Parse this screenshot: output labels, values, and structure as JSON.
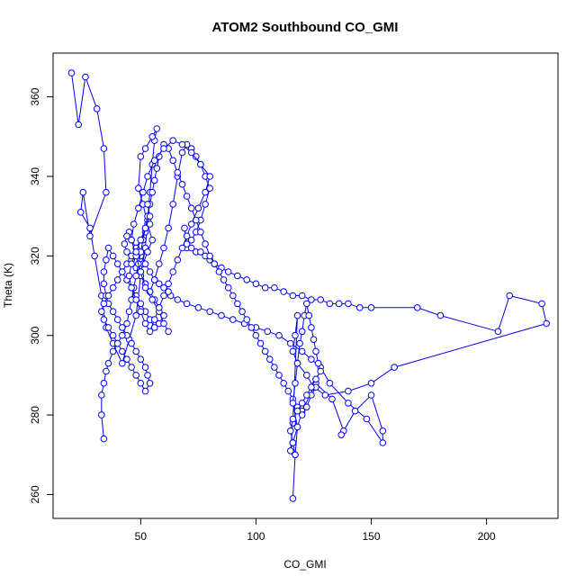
{
  "chart_data": {
    "type": "line",
    "title": "ATOM2 Southbound CO_GMI",
    "xlabel": "CO_GMI",
    "ylabel": "Theta (K)",
    "xlim": [
      12,
      231
    ],
    "ylim": [
      254,
      371
    ],
    "xticks": [
      50,
      100,
      150,
      200
    ],
    "yticks": [
      260,
      280,
      300,
      320,
      340,
      360
    ],
    "grid": false,
    "legend": "none",
    "series_color": "#0000ff",
    "marker": "open-circle",
    "series": [
      {
        "x": [
          20,
          23,
          26,
          31,
          34,
          35,
          28,
          25,
          24,
          28,
          30,
          33,
          35,
          38,
          42,
          45,
          48,
          50,
          52,
          53,
          54,
          55,
          56,
          57,
          55,
          52,
          50,
          49,
          51,
          53,
          55,
          53,
          51,
          50,
          52,
          54,
          56,
          58,
          60,
          62,
          64,
          66,
          68,
          70,
          72,
          74,
          76,
          78,
          80,
          78,
          76,
          74,
          72,
          70,
          69,
          70,
          72,
          74,
          76,
          78,
          80,
          82,
          85,
          88,
          92,
          96,
          100,
          104,
          108,
          112,
          116,
          120,
          124,
          128,
          132,
          136,
          140,
          145,
          150,
          170,
          180,
          205,
          210,
          224,
          226,
          160,
          150,
          140,
          130,
          125,
          122,
          118,
          116,
          117,
          118,
          116,
          115,
          116,
          120,
          126,
          133,
          138,
          137,
          143,
          150,
          155,
          155,
          148,
          140,
          132,
          128,
          124,
          120,
          115,
          110,
          105,
          100,
          95,
          90,
          85,
          80,
          75,
          70,
          66,
          63,
          62,
          60,
          58,
          56,
          54,
          52,
          50,
          48,
          46,
          45,
          44,
          43,
          44,
          46,
          48,
          50,
          52,
          54,
          56,
          58,
          60,
          58,
          56,
          54,
          52,
          50,
          48,
          46,
          44,
          42,
          40,
          38,
          36,
          35,
          34,
          34,
          35,
          36,
          38,
          40,
          42,
          44,
          46,
          48,
          50,
          52,
          53,
          54,
          52,
          50,
          48,
          46,
          44,
          42,
          40,
          38,
          36,
          34,
          33,
          34,
          36,
          38,
          40,
          42,
          44,
          46,
          48,
          50,
          52,
          54
        ],
        "y": [
          366,
          353,
          365,
          357,
          347,
          336,
          325,
          336,
          331,
          327,
          320,
          310,
          302,
          298,
          293,
          299,
          305,
          315,
          322,
          329,
          336,
          343,
          349,
          352,
          350,
          347,
          345,
          337,
          333,
          328,
          324,
          321,
          318,
          316,
          313,
          311,
          314,
          318,
          322,
          327,
          333,
          340,
          346,
          348,
          347,
          345,
          343,
          340,
          337,
          333,
          329,
          326,
          324,
          322,
          327,
          323,
          322,
          321,
          321,
          320,
          319,
          318,
          317,
          316,
          315,
          314,
          313,
          312,
          312,
          311,
          310,
          310,
          309,
          309,
          308,
          308,
          308,
          307,
          307,
          307,
          305,
          301,
          310,
          308,
          303,
          292,
          288,
          286,
          285,
          287,
          290,
          293,
          296,
          300,
          305,
          278,
          271,
          273,
          281,
          288,
          284,
          276,
          275,
          281,
          285,
          276,
          273,
          279,
          283,
          288,
          292,
          294,
          296,
          298,
          300,
          301,
          302,
          303,
          304,
          305,
          306,
          307,
          308,
          309,
          310,
          311,
          312,
          313,
          314,
          316,
          318,
          320,
          322,
          324,
          326,
          325,
          323,
          321,
          319,
          317,
          315,
          313,
          311,
          309,
          307,
          305,
          303,
          302,
          304,
          306,
          308,
          310,
          312,
          314,
          316,
          318,
          320,
          322,
          319,
          316,
          313,
          310,
          308,
          306,
          304,
          302,
          300,
          298,
          296,
          294,
          292,
          290,
          288,
          286,
          288,
          290,
          292,
          294,
          296,
          298,
          300,
          302,
          304,
          306,
          308,
          310,
          312,
          314,
          316,
          318,
          320,
          322,
          324,
          326,
          328
        ]
      },
      {
        "x": [
          34,
          33,
          33,
          34,
          35,
          36,
          38,
          40,
          42,
          44,
          45,
          46,
          47,
          48,
          49,
          50,
          51,
          52,
          53,
          54,
          55,
          56,
          57,
          58,
          60,
          62,
          64,
          66,
          68,
          70,
          72,
          74,
          76,
          78,
          80,
          82,
          84,
          86,
          88,
          90,
          92,
          94,
          96,
          98,
          100,
          102,
          104,
          106,
          108,
          110,
          112,
          114,
          116,
          118,
          120,
          122,
          124,
          126
        ],
        "y": [
          274,
          280,
          285,
          288,
          291,
          293,
          296,
          298,
          300,
          303,
          306,
          309,
          312,
          315,
          318,
          321,
          324,
          327,
          330,
          333,
          336,
          339,
          342,
          345,
          348,
          347,
          344,
          341,
          338,
          335,
          332,
          329,
          326,
          323,
          320,
          318,
          316,
          314,
          312,
          310,
          308,
          306,
          304,
          302,
          300,
          298,
          296,
          294,
          292,
          290,
          288,
          286,
          284,
          282,
          280,
          282,
          285,
          287
        ]
      },
      {
        "x": [
          116,
          117,
          118,
          116,
          117,
          118,
          119,
          120,
          121,
          122,
          123,
          124,
          125,
          126,
          127,
          128,
          126,
          124,
          122,
          120,
          118,
          116,
          115,
          116,
          117
        ],
        "y": [
          259,
          270,
          277,
          283,
          288,
          293,
          298,
          301,
          305,
          308,
          305,
          302,
          299,
          296,
          293,
          291,
          289,
          287,
          285,
          283,
          281,
          279,
          276,
          273,
          270
        ]
      },
      {
        "x": [
          62,
          60,
          58,
          55,
          52,
          50,
          48,
          46,
          47,
          49,
          51,
          53,
          56,
          60,
          64,
          68,
          72,
          76,
          80,
          78,
          75,
          72,
          70,
          68,
          66,
          64,
          62,
          60,
          58,
          56,
          54,
          52,
          50,
          48,
          46,
          45,
          46,
          48,
          50,
          52,
          54,
          53
        ],
        "y": [
          301,
          303,
          306,
          309,
          312,
          316,
          320,
          324,
          328,
          332,
          336,
          340,
          344,
          347,
          349,
          348,
          346,
          343,
          340,
          336,
          332,
          328,
          325,
          322,
          319,
          316,
          313,
          310,
          307,
          304,
          301,
          303,
          306,
          309,
          312,
          315,
          318,
          321,
          324,
          327,
          330,
          333
        ]
      }
    ]
  }
}
